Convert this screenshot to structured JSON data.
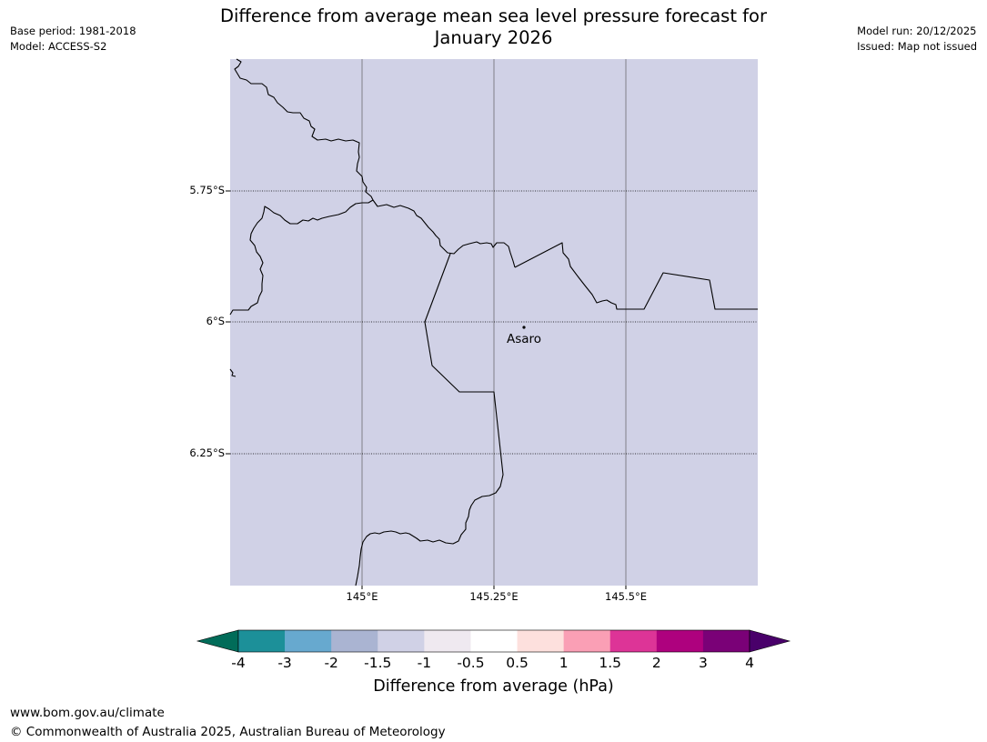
{
  "header": {
    "title_line1": "Difference from average mean sea level pressure forecast for",
    "title_line2": "January 2026",
    "base_period": "Base period: 1981-2018",
    "model": "Model: ACCESS-S2",
    "model_run": "Model run: 20/12/2025",
    "issued": "Issued: Map not issued"
  },
  "map": {
    "fill_color": "#d0d1e6",
    "lat_labels": [
      "5.75°S",
      "6°S",
      "6.25°S"
    ],
    "lon_labels": [
      "145°E",
      "145.25°E",
      "145.5°E"
    ],
    "place": {
      "name": "Asaro"
    }
  },
  "colorbar": {
    "label": "Difference from average (hPa)",
    "tick_labels": [
      "-4",
      "-3",
      "-2",
      "-1.5",
      "-1",
      "-0.5",
      "0.5",
      "1",
      "1.5",
      "2",
      "3",
      "4"
    ],
    "under_color": "#016c59",
    "over_color": "#49006a",
    "colors": [
      "#1c9099",
      "#67a9cf",
      "#aab4d2",
      "#d0d1e6",
      "#efe9f0",
      "#ffffff",
      "#fde0dd",
      "#fa9fb5",
      "#dd3497",
      "#ae017e",
      "#7a0177"
    ]
  },
  "footer": {
    "site": "www.bom.gov.au/climate",
    "copyright": "© Commonwealth of Australia 2025, Australian Bureau of Meteorology"
  }
}
